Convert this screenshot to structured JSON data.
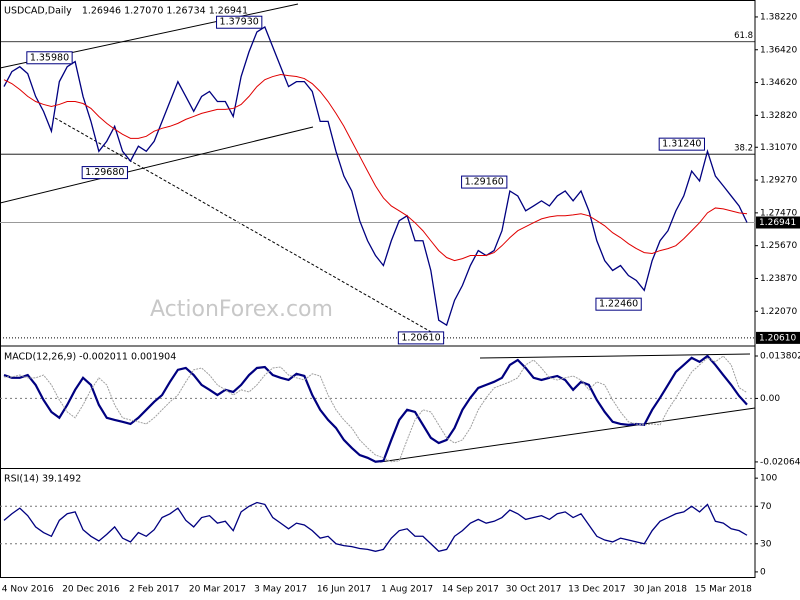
{
  "chart_data": [
    {
      "type": "line",
      "title": "USDCAD,Daily",
      "subtitle": "1.26946 1.27070 1.26734 1.26941",
      "watermark": "ActionForex.com",
      "categories": [
        null,
        null,
        null,
        "4 Nov 2016",
        null,
        null,
        null,
        null,
        null,
        null,
        null,
        "20 Dec 2016",
        null,
        null,
        null,
        null,
        null,
        null,
        null,
        "2 Feb 2017",
        null,
        null,
        null,
        null,
        null,
        null,
        null,
        "20 Mar 2017",
        null,
        null,
        null,
        null,
        null,
        null,
        null,
        "3 May 2017",
        null,
        null,
        null,
        null,
        null,
        null,
        null,
        "16 Jun 2017",
        null,
        null,
        null,
        null,
        null,
        null,
        null,
        "1 Aug 2017",
        null,
        null,
        null,
        null,
        null,
        null,
        null,
        "14 Sep 2017",
        null,
        null,
        null,
        null,
        null,
        null,
        null,
        "30 Oct 2017",
        null,
        null,
        null,
        null,
        null,
        null,
        null,
        "13 Dec 2017",
        null,
        null,
        null,
        null,
        null,
        null,
        null,
        "30 Jan 2018",
        null,
        null,
        null,
        null,
        null,
        null,
        null,
        "15 Mar 2018",
        null,
        null,
        null
      ],
      "series": [
        {
          "color": "#000080",
          "values": [
            1.344,
            1.3522,
            1.3549,
            1.3511,
            1.3386,
            1.3304,
            1.3195,
            1.3467,
            1.3549,
            1.3577,
            1.3386,
            1.3249,
            1.3085,
            1.314,
            1.3222,
            1.3085,
            1.3031,
            1.3113,
            1.3085,
            1.314,
            1.3249,
            1.3358,
            1.3467,
            1.3386,
            1.3304,
            1.3386,
            1.3413,
            1.3358,
            1.3358,
            1.3276,
            1.3495,
            1.3631,
            1.374,
            1.3767,
            1.3658,
            1.3549,
            1.344,
            1.3467,
            1.3467,
            1.3413,
            1.3249,
            1.3249,
            1.3085,
            1.2949,
            1.2867,
            1.2704,
            1.2594,
            1.2513,
            1.2458,
            1.2594,
            1.2704,
            1.2731,
            1.2594,
            1.2594,
            1.2431,
            1.2158,
            1.2131,
            1.2267,
            1.2349,
            1.2458,
            1.254,
            1.2513,
            1.254,
            1.2649,
            1.2867,
            1.284,
            1.2758,
            1.2785,
            1.2813,
            1.2785,
            1.284,
            1.2867,
            1.2813,
            1.2867,
            1.2758,
            1.2594,
            1.2485,
            1.2431,
            1.2458,
            1.2403,
            1.2376,
            1.2322,
            1.2485,
            1.2594,
            1.2649,
            1.2758,
            1.284,
            1.2976,
            1.2922,
            1.3085,
            1.2949,
            1.2895,
            1.284,
            1.2785,
            1.2694
          ]
        },
        {
          "color": "#e00000",
          "values": [
            1.3478,
            1.3456,
            1.3424,
            1.3386,
            1.3358,
            1.3342,
            1.3331,
            1.3342,
            1.3358,
            1.3358,
            1.3347,
            1.332,
            1.3276,
            1.3238,
            1.3206,
            1.3178,
            1.3156,
            1.3156,
            1.3167,
            1.3195,
            1.3211,
            1.3222,
            1.3238,
            1.326,
            1.3276,
            1.3293,
            1.3304,
            1.3315,
            1.3315,
            1.332,
            1.3342,
            1.3386,
            1.344,
            1.3478,
            1.3495,
            1.3506,
            1.35,
            1.3495,
            1.3484,
            1.3456,
            1.3413,
            1.3358,
            1.3293,
            1.3222,
            1.314,
            1.3058,
            1.2976,
            1.2895,
            1.2829,
            1.2785,
            1.2758,
            1.2731,
            1.2693,
            1.2649,
            1.2594,
            1.254,
            1.2502,
            1.2485,
            1.2496,
            1.2513,
            1.2513,
            1.2513,
            1.2529,
            1.2567,
            1.2611,
            1.2649,
            1.2671,
            1.2693,
            1.2714,
            1.2725,
            1.2731,
            1.2731,
            1.2736,
            1.2742,
            1.2731,
            1.2704,
            1.2676,
            1.2638,
            1.2611,
            1.2578,
            1.2551,
            1.2529,
            1.2524,
            1.254,
            1.2551,
            1.2567,
            1.2605,
            1.2649,
            1.2693,
            1.2747,
            1.2774,
            1.2769,
            1.2758,
            1.2747,
            1.2742
          ]
        }
      ],
      "ylim": [
        1.2022,
        1.3904
      ],
      "yticks": [
        {
          "value": 1.3822,
          "label": "1.38220"
        },
        {
          "value": 1.3642,
          "label": "1.36420"
        },
        {
          "value": 1.3462,
          "label": "1.34620"
        },
        {
          "value": 1.3282,
          "label": "1.32820"
        },
        {
          "value": 1.3107,
          "label": "1.31070"
        },
        {
          "value": 1.2927,
          "label": "1.29270"
        },
        {
          "value": 1.2747,
          "label": "1.27470"
        },
        {
          "value": 1.2567,
          "label": "1.25670"
        },
        {
          "value": 1.2387,
          "label": "1.23870"
        },
        {
          "value": 1.2207,
          "label": "1.22070"
        }
      ],
      "price_markers": [
        {
          "value": 1.26941,
          "label": "1.26941"
        },
        {
          "value": 1.2061,
          "label": "1.20610"
        }
      ],
      "fib_levels": [
        {
          "value": 1.3686,
          "label": "61.8"
        },
        {
          "value": 1.3069,
          "label": "38.2"
        }
      ],
      "annotations": [
        {
          "x": 33,
          "value": 1.3793,
          "label": "1.37930"
        },
        {
          "x": 9,
          "value": 1.3598,
          "label": "1.35980"
        },
        {
          "x": 16,
          "value": 1.2968,
          "label": "1.29680"
        },
        {
          "x": 56,
          "value": 1.2061,
          "label": "1.20610"
        },
        {
          "x": 64,
          "value": 1.2916,
          "label": "1.29160"
        },
        {
          "x": 81,
          "value": 1.2246,
          "label": "1.22460"
        },
        {
          "x": 89,
          "value": 1.3124,
          "label": "1.31240"
        }
      ]
    },
    {
      "type": "line",
      "title": "MACD(12,26,9) -0.002011 0.001904",
      "series": [
        {
          "color": "#000080",
          "values": [
            0.0076,
            0.0067,
            0.0067,
            0.0076,
            0.0044,
            -0.0005,
            -0.0044,
            -0.0063,
            -0.0021,
            0.0028,
            0.0067,
            0.0044,
            -0.0021,
            -0.0063,
            -0.007,
            -0.0076,
            -0.0083,
            -0.0063,
            -0.0037,
            -0.0011,
            0.0011,
            0.0054,
            0.0093,
            0.0099,
            0.0076,
            0.0044,
            0.0028,
            0.0011,
            0.0028,
            0.0021,
            0.0044,
            0.0076,
            0.0099,
            0.0102,
            0.0076,
            0.0067,
            0.006,
            0.008,
            0.0073,
            0.0011,
            -0.0037,
            -0.007,
            -0.0096,
            -0.0135,
            -0.0161,
            -0.0184,
            -0.0193,
            -0.0206,
            -0.0203,
            -0.0135,
            -0.007,
            -0.0037,
            -0.0044,
            -0.0086,
            -0.0128,
            -0.0145,
            -0.0135,
            -0.0096,
            -0.0037,
            0.0002,
            0.0034,
            0.0044,
            0.0054,
            0.0067,
            0.0109,
            0.0125,
            0.0099,
            0.0067,
            0.006,
            0.0067,
            0.0073,
            0.006,
            0.0028,
            0.0054,
            0.0044,
            -0.0005,
            -0.0044,
            -0.0076,
            -0.0083,
            -0.0086,
            -0.0083,
            -0.0086,
            -0.0037,
            0.0002,
            0.0044,
            0.0086,
            0.0109,
            0.0132,
            0.0119,
            0.0138,
            0.0109,
            0.0076,
            0.0044,
            0.0008,
            -0.002
          ]
        },
        {
          "color": "#a0a0a0",
          "values": [
            0.007,
            0.007,
            0.0076,
            0.0067,
            0.0067,
            0.0076,
            0.0044,
            -0.0005,
            -0.0044,
            -0.0063,
            -0.0021,
            0.0028,
            0.0067,
            0.0044,
            -0.0021,
            -0.0063,
            -0.007,
            -0.0076,
            -0.0083,
            -0.0063,
            -0.0037,
            -0.0011,
            0.0011,
            0.0054,
            0.0093,
            0.0099,
            0.0076,
            0.0044,
            0.0028,
            0.0011,
            0.0028,
            0.0021,
            0.0044,
            0.0076,
            0.0099,
            0.0102,
            0.0076,
            0.0067,
            0.006,
            0.008,
            0.0073,
            0.0011,
            -0.0037,
            -0.007,
            -0.0096,
            -0.0135,
            -0.0161,
            -0.0184,
            -0.0193,
            -0.0206,
            -0.0203,
            -0.0135,
            -0.007,
            -0.0037,
            -0.0044,
            -0.0086,
            -0.0128,
            -0.0145,
            -0.0135,
            -0.0096,
            -0.0037,
            0.0002,
            0.0034,
            0.0044,
            0.0054,
            0.0067,
            0.0109,
            0.0125,
            0.0099,
            0.0067,
            0.006,
            0.0067,
            0.0073,
            0.006,
            0.0028,
            0.0054,
            0.0044,
            -0.0005,
            -0.0044,
            -0.0076,
            -0.0083,
            -0.0086,
            -0.0083,
            -0.0086,
            -0.0037,
            0.0002,
            0.0044,
            0.0086,
            0.0109,
            0.0132,
            0.0119,
            0.0138,
            0.0109,
            0.0035,
            0.0019
          ]
        }
      ],
      "ylim": [
        -0.0223,
        0.0164
      ],
      "yticks": [
        0.013802,
        {
          "value": 0,
          "label": "0.00"
        },
        -0.020648
      ],
      "levels": [
        0
      ]
    },
    {
      "type": "line",
      "title": "RSI(14) 39.1492",
      "series": [
        {
          "color": "#000080",
          "values": [
            55,
            62,
            68,
            60,
            48,
            42,
            38,
            55,
            62,
            64,
            45,
            38,
            33,
            40,
            48,
            36,
            32,
            42,
            38,
            45,
            58,
            62,
            68,
            55,
            48,
            58,
            60,
            52,
            54,
            44,
            64,
            70,
            74,
            72,
            58,
            52,
            46,
            52,
            50,
            44,
            36,
            38,
            30,
            28,
            27,
            25,
            24,
            22,
            24,
            36,
            44,
            46,
            38,
            38,
            30,
            22,
            24,
            38,
            44,
            52,
            56,
            52,
            54,
            58,
            66,
            62,
            56,
            58,
            60,
            56,
            62,
            64,
            58,
            62,
            50,
            38,
            34,
            32,
            36,
            34,
            32,
            30,
            44,
            54,
            58,
            62,
            64,
            70,
            64,
            72,
            54,
            52,
            46,
            44,
            39.1
          ]
        }
      ],
      "ylim": [
        -6.5,
        108.7
      ],
      "yticks": [
        0,
        30,
        70,
        100
      ],
      "levels": [
        30,
        70
      ]
    }
  ]
}
